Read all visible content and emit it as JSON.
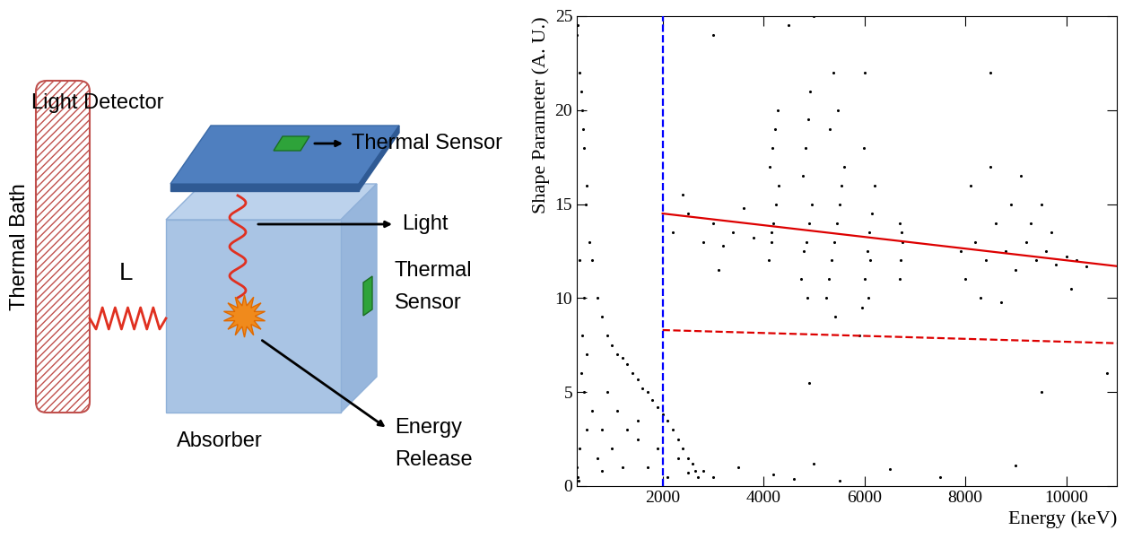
{
  "diagram": {
    "light_detector": "Light Detector",
    "light_detector_sensor": "Thermal Sensor",
    "light": "Light",
    "absorber_sensor": "Thermal\nSensor",
    "energy_release": "Energy\nRelease",
    "absorber": "Absorber",
    "thermal_bath": "Thermal Bath",
    "link": "L"
  },
  "chart_data": {
    "type": "scatter",
    "xlabel": "Energy (keV)",
    "ylabel": "Shape Parameter (A. U.)",
    "xlim": [
      300,
      11000
    ],
    "ylim": [
      0,
      25
    ],
    "xticks": [
      2000,
      4000,
      6000,
      8000,
      10000
    ],
    "yticks": [
      0,
      5,
      10,
      15,
      20,
      25
    ],
    "grid": false,
    "series": [
      {
        "type": "scatter",
        "color": "#000000",
        "marker": "circle",
        "x": [
          300,
          350,
          400,
          450,
          500,
          320,
          380,
          420,
          480,
          550,
          600,
          700,
          800,
          900,
          1000,
          1100,
          1200,
          1300,
          1400,
          1500,
          1600,
          1700,
          1800,
          1900,
          2000,
          2100,
          2200,
          2300,
          2400,
          2500,
          2600,
          2650,
          2700,
          350,
          400,
          450,
          500,
          300,
          320,
          340,
          360,
          380,
          450,
          600,
          800,
          1000,
          1200,
          700,
          900,
          1100,
          1300,
          1500,
          1700,
          1900,
          2100,
          2300,
          2500,
          500,
          800,
          1500,
          2200,
          2500,
          2800,
          3000,
          3200,
          3400,
          3600,
          3800,
          2400,
          3100,
          2800,
          3000,
          3500,
          4200,
          4600,
          5000,
          5500,
          6500,
          7500,
          9000,
          3000,
          4500,
          5000,
          6000,
          8500,
          9500,
          10800,
          4900,
          4100,
          4150,
          4200,
          4250,
          4300,
          4120,
          4180,
          4230,
          4280,
          4150,
          4750,
          4800,
          4850,
          4900,
          4950,
          4780,
          4830,
          4880,
          4920,
          4870,
          5250,
          5300,
          5350,
          5400,
          5450,
          5500,
          5550,
          5600,
          5320,
          5480,
          5380,
          5420,
          5900,
          5950,
          6000,
          6050,
          6100,
          6150,
          6200,
          5980,
          6080,
          6120,
          6700,
          6720,
          6750,
          6690,
          6730,
          7900,
          8000,
          8200,
          8400,
          8600,
          8800,
          9000,
          9200,
          9400,
          9600,
          9800,
          10000,
          10200,
          10400,
          8100,
          8500,
          8900,
          9300,
          9700,
          10100,
          8300,
          8700,
          9100,
          9500
        ],
        "values": [
          24,
          22,
          20,
          18,
          16,
          24.5,
          21,
          19,
          15,
          13,
          12,
          10,
          9,
          8,
          7.5,
          7,
          6.8,
          6.5,
          6,
          5.7,
          5.2,
          5,
          4.6,
          4.2,
          3.8,
          3.5,
          3,
          2.5,
          2,
          1.5,
          1.2,
          0.8,
          0.5,
          12,
          8,
          5,
          3,
          1,
          0.5,
          0.3,
          2,
          6,
          10,
          4,
          3,
          2,
          1,
          1.5,
          5,
          4,
          3,
          2.5,
          1,
          2,
          0.5,
          1.5,
          0.7,
          7,
          0.8,
          3.5,
          13.5,
          14.5,
          13,
          14,
          12.8,
          13.5,
          14.8,
          13.2,
          15.5,
          11.5,
          0.8,
          0.5,
          1,
          0.6,
          0.4,
          1.2,
          0.3,
          0.9,
          0.5,
          1.1,
          24,
          24.5,
          25,
          22,
          22,
          5,
          6,
          5.5,
          12,
          13,
          14,
          15,
          16,
          17,
          18,
          19,
          20,
          13.5,
          11,
          12.5,
          13,
          14,
          15,
          16.5,
          18,
          19.5,
          21,
          10,
          10,
          11,
          12,
          13,
          14,
          15,
          16,
          17,
          19,
          20,
          22,
          9,
          8,
          9.5,
          11,
          12.5,
          13.5,
          14.5,
          16,
          18,
          10,
          12,
          11,
          12,
          13,
          14,
          13.5,
          12.5,
          11,
          13,
          12,
          14,
          12.5,
          11.5,
          13,
          12,
          12.5,
          11.8,
          12.2,
          12,
          11.7,
          16,
          17,
          15,
          14,
          13.5,
          10.5,
          10,
          9.8,
          16.5,
          15
        ]
      },
      {
        "type": "line",
        "color": "#dd0000",
        "line_style": "solid",
        "x": [
          2000,
          11000
        ],
        "values": [
          14.5,
          11.7
        ]
      },
      {
        "type": "line",
        "color": "#dd0000",
        "line_style": "dashed",
        "x": [
          2000,
          11000
        ],
        "values": [
          8.3,
          7.6
        ]
      },
      {
        "type": "line",
        "color": "#0000ff",
        "line_style": "dashed",
        "x": [
          2000,
          2000
        ],
        "values": [
          0,
          25
        ]
      }
    ]
  }
}
